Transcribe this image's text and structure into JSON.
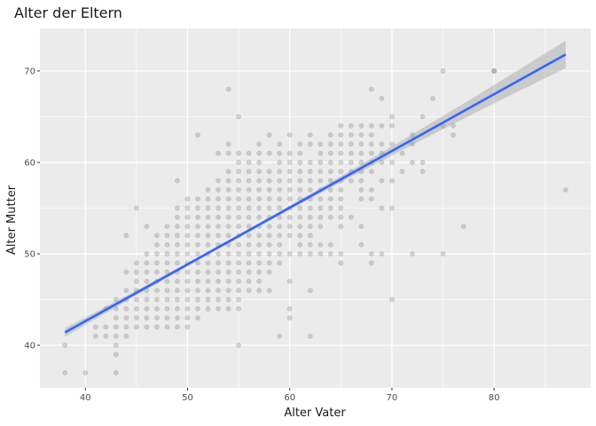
{
  "chart_data": {
    "type": "scatter",
    "title": "Alter der Eltern",
    "xlabel": "Alter Vater",
    "ylabel": "Alter Mutter",
    "xlim": [
      35.55,
      89.45
    ],
    "ylim": [
      35.35,
      74.65
    ],
    "x_ticks": [
      40,
      50,
      60,
      70,
      80
    ],
    "y_ticks": [
      40,
      50,
      60,
      70
    ],
    "x_tick_labels": [
      "40",
      "50",
      "60",
      "70",
      "80"
    ],
    "y_tick_labels": [
      "40",
      "50",
      "60",
      "70"
    ],
    "grid": true,
    "background": "panel-grey",
    "point_color": "#000000",
    "point_alpha": 0.14,
    "fit_line": {
      "type": "linear",
      "color": "#3366FF",
      "x": [
        38,
        87
      ],
      "y": [
        41.4,
        71.8
      ],
      "confidence_band": true,
      "band_color": "#999999"
    },
    "points": [
      [
        38,
        37
      ],
      [
        38,
        40
      ],
      [
        40,
        37
      ],
      [
        41,
        41
      ],
      [
        41,
        42
      ],
      [
        42,
        41
      ],
      [
        42,
        42
      ],
      [
        42,
        44
      ],
      [
        43,
        37
      ],
      [
        43,
        39
      ],
      [
        43,
        40
      ],
      [
        43,
        41
      ],
      [
        43,
        42
      ],
      [
        43,
        43
      ],
      [
        43,
        44
      ],
      [
        43,
        45
      ],
      [
        44,
        41
      ],
      [
        44,
        42
      ],
      [
        44,
        43
      ],
      [
        44,
        44
      ],
      [
        44,
        45
      ],
      [
        44,
        46
      ],
      [
        44,
        48
      ],
      [
        44,
        52
      ],
      [
        45,
        42
      ],
      [
        45,
        43
      ],
      [
        45,
        44
      ],
      [
        45,
        45
      ],
      [
        45,
        46
      ],
      [
        45,
        47
      ],
      [
        45,
        48
      ],
      [
        45,
        49
      ],
      [
        45,
        55
      ],
      [
        46,
        42
      ],
      [
        46,
        43
      ],
      [
        46,
        44
      ],
      [
        46,
        45
      ],
      [
        46,
        46
      ],
      [
        46,
        47
      ],
      [
        46,
        48
      ],
      [
        46,
        49
      ],
      [
        46,
        50
      ],
      [
        46,
        53
      ],
      [
        47,
        42
      ],
      [
        47,
        43
      ],
      [
        47,
        44
      ],
      [
        47,
        45
      ],
      [
        47,
        46
      ],
      [
        47,
        47
      ],
      [
        47,
        48
      ],
      [
        47,
        49
      ],
      [
        47,
        50
      ],
      [
        47,
        51
      ],
      [
        47,
        52
      ],
      [
        48,
        42
      ],
      [
        48,
        43
      ],
      [
        48,
        44
      ],
      [
        48,
        45
      ],
      [
        48,
        46
      ],
      [
        48,
        47
      ],
      [
        48,
        48
      ],
      [
        48,
        49
      ],
      [
        48,
        50
      ],
      [
        48,
        51
      ],
      [
        48,
        52
      ],
      [
        48,
        53
      ],
      [
        49,
        42
      ],
      [
        49,
        43
      ],
      [
        49,
        44
      ],
      [
        49,
        45
      ],
      [
        49,
        46
      ],
      [
        49,
        47
      ],
      [
        49,
        48
      ],
      [
        49,
        49
      ],
      [
        49,
        50
      ],
      [
        49,
        51
      ],
      [
        49,
        52
      ],
      [
        49,
        53
      ],
      [
        49,
        54
      ],
      [
        49,
        55
      ],
      [
        49,
        58
      ],
      [
        50,
        42
      ],
      [
        50,
        43
      ],
      [
        50,
        44
      ],
      [
        50,
        45
      ],
      [
        50,
        46
      ],
      [
        50,
        47
      ],
      [
        50,
        48
      ],
      [
        50,
        49
      ],
      [
        50,
        50
      ],
      [
        50,
        51
      ],
      [
        50,
        52
      ],
      [
        50,
        53
      ],
      [
        50,
        54
      ],
      [
        50,
        55
      ],
      [
        50,
        56
      ],
      [
        51,
        43
      ],
      [
        51,
        44
      ],
      [
        51,
        45
      ],
      [
        51,
        46
      ],
      [
        51,
        47
      ],
      [
        51,
        48
      ],
      [
        51,
        49
      ],
      [
        51,
        50
      ],
      [
        51,
        51
      ],
      [
        51,
        52
      ],
      [
        51,
        53
      ],
      [
        51,
        54
      ],
      [
        51,
        55
      ],
      [
        51,
        56
      ],
      [
        51,
        63
      ],
      [
        52,
        44
      ],
      [
        52,
        45
      ],
      [
        52,
        46
      ],
      [
        52,
        47
      ],
      [
        52,
        48
      ],
      [
        52,
        49
      ],
      [
        52,
        50
      ],
      [
        52,
        51
      ],
      [
        52,
        52
      ],
      [
        52,
        53
      ],
      [
        52,
        54
      ],
      [
        52,
        55
      ],
      [
        52,
        56
      ],
      [
        52,
        57
      ],
      [
        53,
        44
      ],
      [
        53,
        45
      ],
      [
        53,
        46
      ],
      [
        53,
        47
      ],
      [
        53,
        48
      ],
      [
        53,
        49
      ],
      [
        53,
        50
      ],
      [
        53,
        51
      ],
      [
        53,
        52
      ],
      [
        53,
        53
      ],
      [
        53,
        54
      ],
      [
        53,
        55
      ],
      [
        53,
        56
      ],
      [
        53,
        57
      ],
      [
        53,
        58
      ],
      [
        53,
        61
      ],
      [
        54,
        44
      ],
      [
        54,
        45
      ],
      [
        54,
        46
      ],
      [
        54,
        47
      ],
      [
        54,
        48
      ],
      [
        54,
        49
      ],
      [
        54,
        50
      ],
      [
        54,
        51
      ],
      [
        54,
        52
      ],
      [
        54,
        53
      ],
      [
        54,
        54
      ],
      [
        54,
        55
      ],
      [
        54,
        56
      ],
      [
        54,
        57
      ],
      [
        54,
        58
      ],
      [
        54,
        59
      ],
      [
        54,
        61
      ],
      [
        54,
        62
      ],
      [
        54,
        68
      ],
      [
        55,
        40
      ],
      [
        55,
        44
      ],
      [
        55,
        45
      ],
      [
        55,
        46
      ],
      [
        55,
        47
      ],
      [
        55,
        48
      ],
      [
        55,
        49
      ],
      [
        55,
        50
      ],
      [
        55,
        51
      ],
      [
        55,
        52
      ],
      [
        55,
        53
      ],
      [
        55,
        54
      ],
      [
        55,
        55
      ],
      [
        55,
        56
      ],
      [
        55,
        57
      ],
      [
        55,
        58
      ],
      [
        55,
        59
      ],
      [
        55,
        60
      ],
      [
        55,
        61
      ],
      [
        55,
        65
      ],
      [
        56,
        46
      ],
      [
        56,
        47
      ],
      [
        56,
        48
      ],
      [
        56,
        49
      ],
      [
        56,
        50
      ],
      [
        56,
        51
      ],
      [
        56,
        52
      ],
      [
        56,
        53
      ],
      [
        56,
        54
      ],
      [
        56,
        55
      ],
      [
        56,
        56
      ],
      [
        56,
        57
      ],
      [
        56,
        58
      ],
      [
        56,
        59
      ],
      [
        56,
        60
      ],
      [
        56,
        61
      ],
      [
        57,
        46
      ],
      [
        57,
        47
      ],
      [
        57,
        48
      ],
      [
        57,
        49
      ],
      [
        57,
        50
      ],
      [
        57,
        51
      ],
      [
        57,
        52
      ],
      [
        57,
        53
      ],
      [
        57,
        54
      ],
      [
        57,
        55
      ],
      [
        57,
        56
      ],
      [
        57,
        57
      ],
      [
        57,
        58
      ],
      [
        57,
        59
      ],
      [
        57,
        60
      ],
      [
        57,
        61
      ],
      [
        57,
        62
      ],
      [
        58,
        46
      ],
      [
        58,
        48
      ],
      [
        58,
        49
      ],
      [
        58,
        50
      ],
      [
        58,
        51
      ],
      [
        58,
        52
      ],
      [
        58,
        53
      ],
      [
        58,
        54
      ],
      [
        58,
        55
      ],
      [
        58,
        56
      ],
      [
        58,
        57
      ],
      [
        58,
        58
      ],
      [
        58,
        59
      ],
      [
        58,
        61
      ],
      [
        58,
        63
      ],
      [
        59,
        41
      ],
      [
        59,
        49
      ],
      [
        59,
        50
      ],
      [
        59,
        51
      ],
      [
        59,
        52
      ],
      [
        59,
        53
      ],
      [
        59,
        54
      ],
      [
        59,
        55
      ],
      [
        59,
        56
      ],
      [
        59,
        57
      ],
      [
        59,
        58
      ],
      [
        59,
        59
      ],
      [
        59,
        60
      ],
      [
        59,
        61
      ],
      [
        59,
        62
      ],
      [
        60,
        43
      ],
      [
        60,
        44
      ],
      [
        60,
        47
      ],
      [
        60,
        50
      ],
      [
        60,
        52
      ],
      [
        60,
        53
      ],
      [
        60,
        54
      ],
      [
        60,
        55
      ],
      [
        60,
        56
      ],
      [
        60,
        57
      ],
      [
        60,
        58
      ],
      [
        60,
        59
      ],
      [
        60,
        60
      ],
      [
        60,
        61
      ],
      [
        60,
        63
      ],
      [
        61,
        50
      ],
      [
        61,
        51
      ],
      [
        61,
        52
      ],
      [
        61,
        53
      ],
      [
        61,
        54
      ],
      [
        61,
        55
      ],
      [
        61,
        56
      ],
      [
        61,
        57
      ],
      [
        61,
        58
      ],
      [
        61,
        59
      ],
      [
        61,
        60
      ],
      [
        61,
        61
      ],
      [
        61,
        62
      ],
      [
        62,
        41
      ],
      [
        62,
        46
      ],
      [
        62,
        50
      ],
      [
        62,
        51
      ],
      [
        62,
        52
      ],
      [
        62,
        53
      ],
      [
        62,
        54
      ],
      [
        62,
        55
      ],
      [
        62,
        56
      ],
      [
        62,
        57
      ],
      [
        62,
        58
      ],
      [
        62,
        59
      ],
      [
        62,
        60
      ],
      [
        62,
        62
      ],
      [
        62,
        63
      ],
      [
        63,
        50
      ],
      [
        63,
        51
      ],
      [
        63,
        53
      ],
      [
        63,
        54
      ],
      [
        63,
        55
      ],
      [
        63,
        56
      ],
      [
        63,
        57
      ],
      [
        63,
        58
      ],
      [
        63,
        59
      ],
      [
        63,
        60
      ],
      [
        63,
        61
      ],
      [
        63,
        62
      ],
      [
        64,
        50
      ],
      [
        64,
        51
      ],
      [
        64,
        54
      ],
      [
        64,
        55
      ],
      [
        64,
        56
      ],
      [
        64,
        57
      ],
      [
        64,
        58
      ],
      [
        64,
        59
      ],
      [
        64,
        60
      ],
      [
        64,
        61
      ],
      [
        64,
        62
      ],
      [
        64,
        63
      ],
      [
        65,
        49
      ],
      [
        65,
        50
      ],
      [
        65,
        53
      ],
      [
        65,
        54
      ],
      [
        65,
        55
      ],
      [
        65,
        56
      ],
      [
        65,
        57
      ],
      [
        65,
        58
      ],
      [
        65,
        59
      ],
      [
        65,
        60
      ],
      [
        65,
        61
      ],
      [
        65,
        62
      ],
      [
        65,
        63
      ],
      [
        65,
        64
      ],
      [
        66,
        54
      ],
      [
        66,
        58
      ],
      [
        66,
        59
      ],
      [
        66,
        60
      ],
      [
        66,
        61
      ],
      [
        66,
        62
      ],
      [
        66,
        63
      ],
      [
        66,
        64
      ],
      [
        67,
        51
      ],
      [
        67,
        53
      ],
      [
        67,
        56
      ],
      [
        67,
        57
      ],
      [
        67,
        58
      ],
      [
        67,
        59
      ],
      [
        67,
        60
      ],
      [
        67,
        61
      ],
      [
        67,
        62
      ],
      [
        67,
        63
      ],
      [
        67,
        64
      ],
      [
        68,
        49
      ],
      [
        68,
        50
      ],
      [
        68,
        56
      ],
      [
        68,
        57
      ],
      [
        68,
        59
      ],
      [
        68,
        60
      ],
      [
        68,
        61
      ],
      [
        68,
        62
      ],
      [
        68,
        63
      ],
      [
        68,
        64
      ],
      [
        68,
        68
      ],
      [
        69,
        50
      ],
      [
        69,
        55
      ],
      [
        69,
        58
      ],
      [
        69,
        60
      ],
      [
        69,
        61
      ],
      [
        69,
        62
      ],
      [
        69,
        64
      ],
      [
        69,
        67
      ],
      [
        70,
        45
      ],
      [
        70,
        55
      ],
      [
        70,
        58
      ],
      [
        70,
        60
      ],
      [
        70,
        62
      ],
      [
        70,
        64
      ],
      [
        70,
        65
      ],
      [
        71,
        59
      ],
      [
        71,
        61
      ],
      [
        72,
        50
      ],
      [
        72,
        60
      ],
      [
        72,
        62
      ],
      [
        72,
        63
      ],
      [
        73,
        59
      ],
      [
        73,
        60
      ],
      [
        73,
        65
      ],
      [
        74,
        67
      ],
      [
        75,
        50
      ],
      [
        75,
        64
      ],
      [
        75,
        70
      ],
      [
        76,
        63
      ],
      [
        76,
        64
      ],
      [
        77,
        53
      ],
      [
        80,
        70
      ],
      [
        80,
        70
      ],
      [
        87,
        57
      ]
    ]
  }
}
